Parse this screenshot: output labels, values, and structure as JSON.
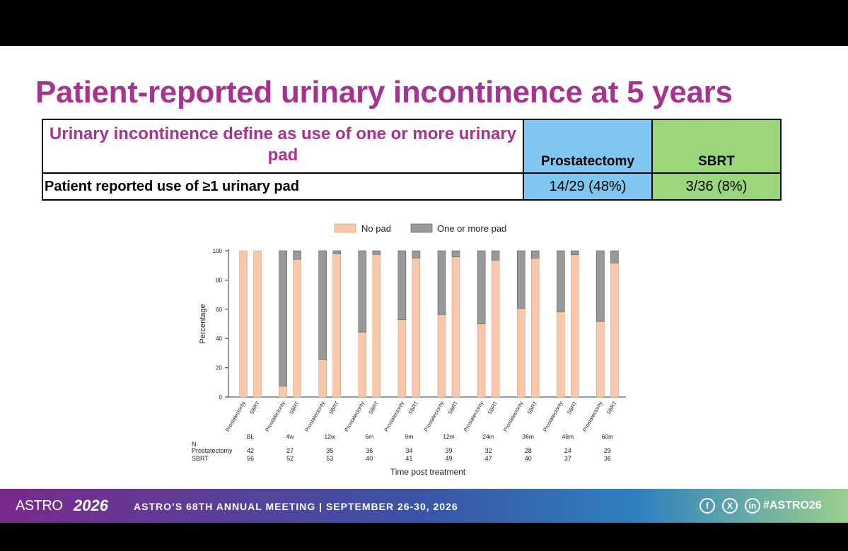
{
  "slide": {
    "title": "Patient-reported urinary incontinence at 5 years"
  },
  "table": {
    "definition": "Urinary incontinence define as use of one or more urinary pad",
    "col1_header": "Prostatectomy",
    "col2_header": "SBRT",
    "row_label": "Patient reported use of ≥1 urinary pad",
    "col1_value": "14/29 (48%)",
    "col2_value": "3/36 (8%)"
  },
  "colors": {
    "prostatectomy_header": "#7fc6f0",
    "sbrt_header": "#9bd67c",
    "no_pad": "#f8c6a8",
    "one_or_more_pad": "#999999",
    "title": "#a6338f"
  },
  "chart_data": {
    "type": "bar",
    "stacked": true,
    "ylabel": "Percentage",
    "xlabel": "Time post treatment",
    "ylim": [
      0,
      100
    ],
    "yticks": [
      0,
      20,
      40,
      60,
      80,
      100
    ],
    "legend": {
      "placement": "top",
      "entries": [
        "No pad",
        "One or more pad"
      ]
    },
    "timepoints": [
      "BL",
      "4w",
      "12w",
      "6m",
      "9m",
      "12m",
      "24m",
      "36m",
      "48m",
      "60m"
    ],
    "groups": [
      "Prostatectomy",
      "SBRT"
    ],
    "series": [
      {
        "name": "No pad",
        "color": "#f8c6a8",
        "prostatectomy": [
          100,
          7.5,
          25.7,
          44.4,
          52.9,
          56.4,
          50,
          60.7,
          58.3,
          51.7
        ],
        "sbrt": [
          100,
          94.2,
          98.1,
          97.5,
          95.1,
          95.9,
          93.6,
          95,
          97.3,
          91.7
        ]
      },
      {
        "name": "One or more pad",
        "color": "#999999",
        "prostatectomy": [
          0,
          92.5,
          74.3,
          55.6,
          47.1,
          43.6,
          50,
          39.3,
          41.7,
          48.3
        ],
        "sbrt": [
          0,
          5.8,
          1.9,
          2.5,
          4.9,
          4.1,
          6.4,
          5,
          2.7,
          8.3
        ]
      }
    ],
    "n_table": {
      "header": "N",
      "rows": [
        {
          "label": "Prostatectomy",
          "values": [
            42,
            27,
            35,
            36,
            34,
            39,
            32,
            28,
            24,
            29
          ]
        },
        {
          "label": "SBRT",
          "values": [
            56,
            52,
            53,
            40,
            41,
            49,
            47,
            40,
            37,
            36
          ]
        }
      ]
    }
  },
  "footer": {
    "logo_text": "ASTRO",
    "logo_year": "2026",
    "meeting": "ASTRO’S 68TH ANNUAL MEETING  |  SEPTEMBER 26-30, 2026",
    "social": [
      "f",
      "X",
      "in"
    ],
    "social_icons": [
      "facebook-icon",
      "x-icon",
      "linkedin-icon"
    ],
    "hashtag": "#ASTRO26"
  }
}
